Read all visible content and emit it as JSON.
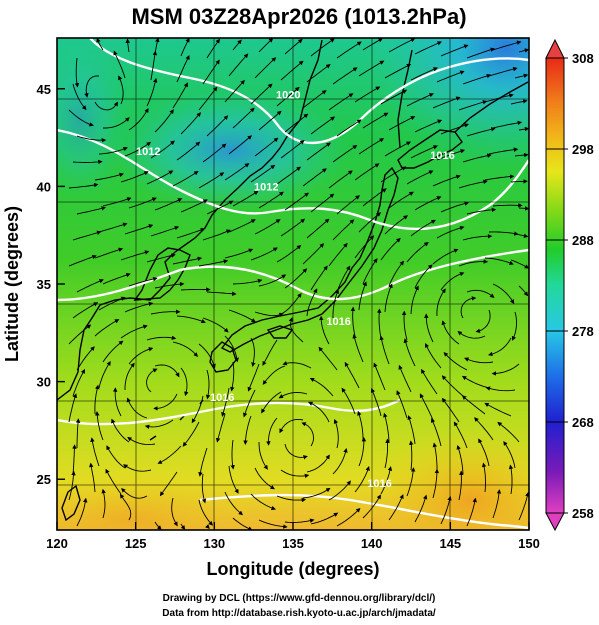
{
  "title": "MSM 03Z28Apr2026 (1013.2hPa)",
  "x_axis": {
    "label": "Longitude (degrees)",
    "min": 120,
    "max": 150,
    "ticks": [
      "120",
      "125",
      "130",
      "135",
      "140",
      "145",
      "150"
    ]
  },
  "y_axis": {
    "label": "Latitude  (degrees)",
    "min": 22.4,
    "max": 47.6,
    "ticks": [
      "25",
      "30",
      "35",
      "40",
      "45"
    ]
  },
  "colorbar": {
    "min": 258,
    "max": 308,
    "ticks": [
      "258",
      "268",
      "278",
      "288",
      "298",
      "308"
    ],
    "colors": [
      "#e040c0",
      "#7a1ab8",
      "#2020d0",
      "#1e6ee8",
      "#28c8e6",
      "#22d89a",
      "#22cc2a",
      "#7ed818",
      "#e6e61a",
      "#f2b41a",
      "#f0781a",
      "#e82a18"
    ]
  },
  "contour_labels": [
    {
      "text": "1012",
      "lon": 125.8,
      "lat": 41.6
    },
    {
      "text": "1020",
      "lon": 134.7,
      "lat": 44.5
    },
    {
      "text": "1016",
      "lon": 144.5,
      "lat": 41.4
    },
    {
      "text": "1012",
      "lon": 133.3,
      "lat": 39.8
    },
    {
      "text": "1016",
      "lon": 137.9,
      "lat": 32.9
    },
    {
      "text": "1016",
      "lon": 130.5,
      "lat": 29.0
    },
    {
      "text": "1016",
      "lon": 140.5,
      "lat": 24.6
    }
  ],
  "credits": {
    "line1": "Drawing by DCL (https://www.gfd-dennou.org/library/dcl/)",
    "line2": "Data from http://database.rish.kyoto-u.ac.jp/arch/jmadata/"
  }
}
